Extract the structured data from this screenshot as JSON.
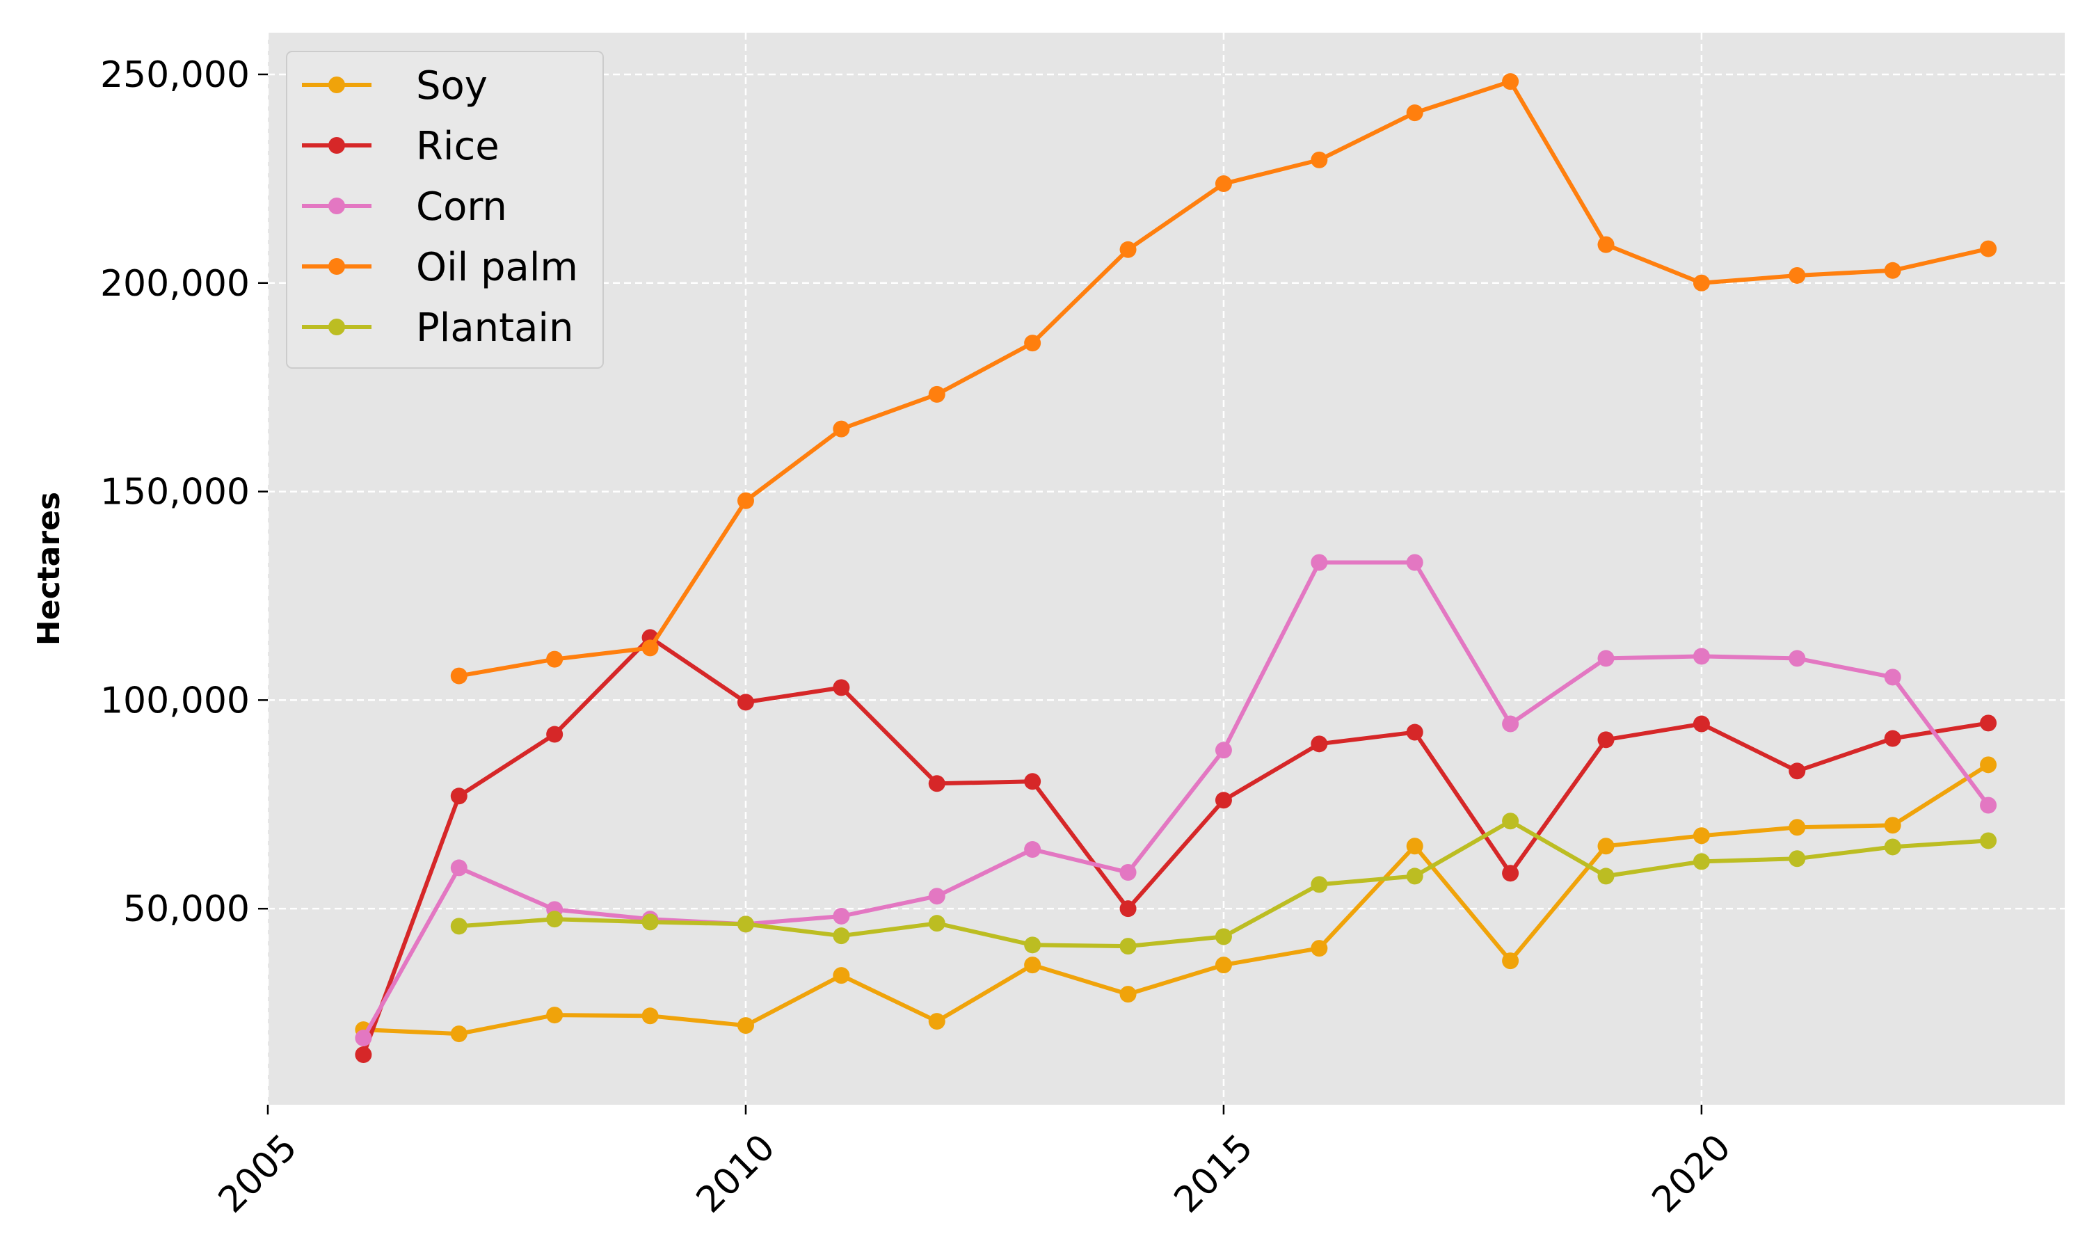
{
  "chart_data": {
    "type": "line",
    "title": "",
    "xlabel": "",
    "ylabel": "Hectares",
    "xlim": [
      2005,
      2023.8
    ],
    "ylim": [
      3000,
      260000
    ],
    "xticks": [
      2005,
      2010,
      2015,
      2020
    ],
    "xtick_labels": [
      "2005",
      "2010",
      "2015",
      "2020"
    ],
    "yticks": [
      50000,
      100000,
      150000,
      200000,
      250000
    ],
    "ytick_labels": [
      "50,000",
      "100,000",
      "150,000",
      "200,000",
      "250,000"
    ],
    "grid": true,
    "legend_position": "top-left",
    "background_color": "#e5e5e5",
    "series": [
      {
        "name": "Soy",
        "color": "#f0a30a",
        "x": [
          2006,
          2007,
          2008,
          2009,
          2010,
          2011,
          2012,
          2013,
          2014,
          2015,
          2016,
          2017,
          2018,
          2019,
          2020,
          2021,
          2022,
          2023
        ],
        "values": [
          21000,
          20000,
          24500,
          24300,
          22000,
          34000,
          23000,
          36500,
          29500,
          36500,
          40500,
          65000,
          37500,
          65000,
          67500,
          69500,
          70000,
          84500
        ]
      },
      {
        "name": "Rice",
        "color": "#d62728",
        "x": [
          2006,
          2007,
          2008,
          2009,
          2010,
          2011,
          2012,
          2013,
          2014,
          2015,
          2016,
          2017,
          2018,
          2019,
          2020,
          2021,
          2022,
          2023
        ],
        "values": [
          15000,
          77000,
          91800,
          115000,
          99500,
          103000,
          80000,
          80500,
          50000,
          76000,
          89500,
          92300,
          58500,
          90500,
          94300,
          83000,
          90800,
          94500
        ]
      },
      {
        "name": "Corn",
        "color": "#e377c2",
        "x": [
          2006,
          2007,
          2008,
          2009,
          2010,
          2011,
          2012,
          2013,
          2014,
          2015,
          2016,
          2017,
          2018,
          2019,
          2020,
          2021,
          2022,
          2023
        ],
        "values": [
          19000,
          59800,
          49800,
          47500,
          46300,
          48200,
          53000,
          64200,
          58700,
          88000,
          133000,
          133000,
          94300,
          110000,
          110500,
          110000,
          105500,
          74800
        ]
      },
      {
        "name": "Oil palm",
        "color": "#ff7f0e",
        "x": [
          2007,
          2008,
          2009,
          2010,
          2011,
          2012,
          2013,
          2014,
          2015,
          2016,
          2017,
          2018,
          2019,
          2020,
          2021,
          2022,
          2023
        ],
        "values": [
          105800,
          109800,
          112500,
          147800,
          165000,
          173300,
          185600,
          208000,
          223800,
          229500,
          240800,
          248300,
          209200,
          200000,
          201800,
          203000,
          208200
        ]
      },
      {
        "name": "Plantain",
        "color": "#bcbd22",
        "x": [
          2007,
          2008,
          2009,
          2010,
          2011,
          2012,
          2013,
          2014,
          2015,
          2016,
          2017,
          2018,
          2019,
          2020,
          2021,
          2022,
          2023
        ],
        "values": [
          45800,
          47500,
          46800,
          46300,
          43500,
          46500,
          41300,
          41000,
          43300,
          55800,
          57800,
          71000,
          57800,
          61300,
          62000,
          64800,
          66300
        ]
      }
    ]
  }
}
